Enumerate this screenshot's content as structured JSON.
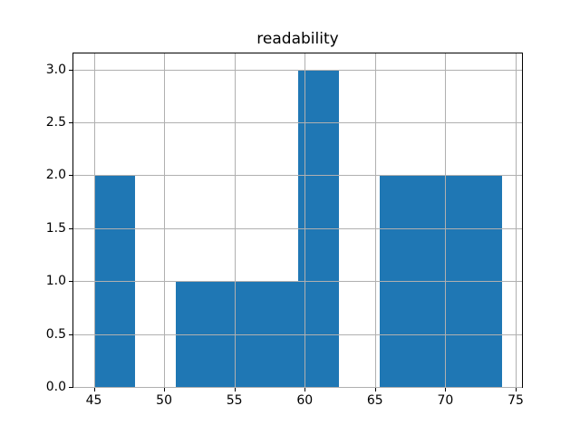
{
  "figure": {
    "background_color": "#ffffff"
  },
  "chart_data": {
    "type": "bar",
    "subtype": "histogram",
    "title": "readability",
    "xlabel": "",
    "ylabel": "",
    "bin_edges": [
      45.0,
      47.9,
      50.8,
      53.7,
      56.6,
      59.5,
      62.4,
      65.3,
      68.2,
      71.1,
      74.0
    ],
    "counts": [
      2,
      0,
      1,
      1,
      1,
      3,
      0,
      2,
      2,
      2
    ],
    "xlim": [
      43.55,
      75.45
    ],
    "ylim": [
      0,
      3.15
    ],
    "x_ticks": [
      45,
      50,
      55,
      60,
      65,
      70,
      75
    ],
    "y_ticks": [
      0.0,
      0.5,
      1.0,
      1.5,
      2.0,
      2.5,
      3.0
    ],
    "y_tick_labels": [
      "0.0",
      "0.5",
      "1.0",
      "1.5",
      "2.0",
      "2.5",
      "3.0"
    ],
    "x_tick_labels": [
      "45",
      "50",
      "55",
      "60",
      "65",
      "70",
      "75"
    ],
    "grid": true,
    "grid_over_bars": true,
    "legend": null,
    "bar_color": "#1f77b4",
    "grid_color": "#b0b0b0",
    "spine_color": "#000000",
    "text_color": "#000000"
  }
}
